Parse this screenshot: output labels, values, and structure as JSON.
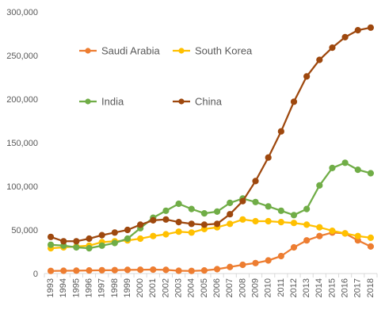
{
  "chart_data": {
    "type": "line",
    "title": "",
    "xlabel": "",
    "ylabel": "",
    "x": [
      "1993",
      "1994",
      "1995",
      "1996",
      "1997",
      "1998",
      "1999",
      "2000",
      "2001",
      "2002",
      "2003",
      "2004",
      "2005",
      "2006",
      "2007",
      "2008",
      "2009",
      "2010",
      "2011",
      "2012",
      "2013",
      "2014",
      "2015",
      "2016",
      "2017",
      "2018"
    ],
    "ylim": [
      0,
      300000
    ],
    "yticks": [
      0,
      50000,
      100000,
      150000,
      200000,
      250000,
      300000
    ],
    "ytick_labels": [
      "0",
      "50,000",
      "100,000",
      "150,000",
      "200,000",
      "250,000",
      "300,000"
    ],
    "grid": false,
    "legend_position": "inside top-left",
    "series": [
      {
        "name": "Saudi Arabia",
        "color": "#ED7D31",
        "values": [
          3000,
          3200,
          3300,
          3500,
          3800,
          3900,
          4200,
          4300,
          4500,
          4200,
          3200,
          3000,
          3500,
          5000,
          7500,
          10000,
          12000,
          15000,
          20000,
          30000,
          38000,
          43000,
          47000,
          46000,
          38000,
          31000
        ]
      },
      {
        "name": "South Korea",
        "color": "#FFC000",
        "values": [
          29000,
          30000,
          31000,
          32000,
          36000,
          37000,
          38000,
          40000,
          43000,
          45000,
          48000,
          47000,
          51000,
          53000,
          57000,
          62000,
          60000,
          60000,
          59000,
          58000,
          56000,
          53000,
          49000,
          46000,
          43000,
          41000
        ]
      },
      {
        "name": "India",
        "color": "#70AD47",
        "values": [
          33000,
          32000,
          30000,
          29000,
          32000,
          35000,
          40000,
          52000,
          64000,
          72000,
          80000,
          74000,
          69000,
          71000,
          81000,
          86000,
          82000,
          77000,
          72000,
          67000,
          74000,
          101000,
          121000,
          127000,
          119000,
          115000
        ]
      },
      {
        "name": "China",
        "color": "#9E480E",
        "values": [
          42000,
          37000,
          37000,
          40000,
          44000,
          47000,
          50000,
          56000,
          61000,
          62000,
          59000,
          57000,
          56000,
          57000,
          68000,
          83000,
          106000,
          133000,
          163000,
          197000,
          226000,
          245000,
          259000,
          271000,
          279000,
          282000
        ]
      }
    ]
  }
}
